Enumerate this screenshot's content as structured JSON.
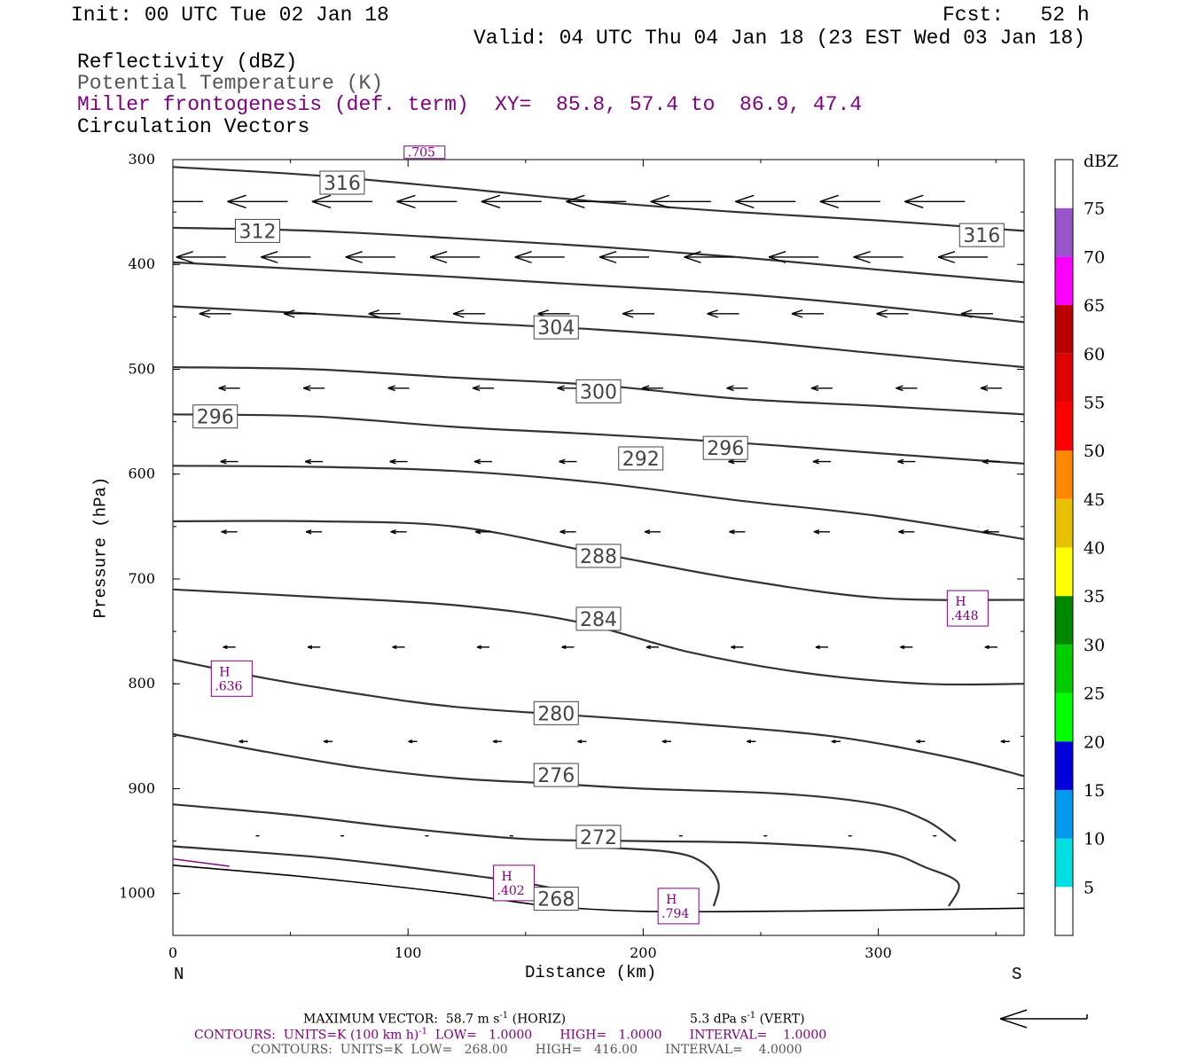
{
  "header": {
    "init": "Init: 00 UTC Tue 02 Jan 18",
    "fcst": "Fcst:   52 h",
    "valid": "Valid: 04 UTC Thu 04 Jan 18 (23 EST Wed 03 Jan 18)",
    "field1": "Reflectivity (dBZ)",
    "field2": "Potential Temperature (K)",
    "field3": "Miller frontogenesis (def. term)",
    "xy": "XY=  85.8, 57.4 to  86.9, 47.4",
    "field4": "Circulation Vectors"
  },
  "footer": {
    "max_vector_label": "MAXIMUM VECTOR:  58.7 m s",
    "max_vector_exp": "-1",
    "max_vector_horiz": " (HORIZ)",
    "vert_value": "5.3 dPa s",
    "vert_exp": "-1",
    "vert_suffix": " (VERT)",
    "contours1_a": "CONTOURS:  UNITS=K (100 km h)",
    "contours1_exp": "-1",
    "contours1_b": "  LOW=   1.0000       HIGH=   1.0000       INTERVAL=    1.0000",
    "contours2": "CONTOURS:  UNITS=K  LOW=   268.00       HIGH=   416.00       INTERVAL=    4.0000"
  },
  "colorbar": {
    "title": "dBZ",
    "labels": [
      "5",
      "10",
      "15",
      "20",
      "25",
      "30",
      "35",
      "40",
      "45",
      "50",
      "55",
      "60",
      "65",
      "70",
      "75"
    ],
    "colors": [
      "#ffffff",
      "#00e0e0",
      "#0099ee",
      "#0000dd",
      "#00ff00",
      "#00cc00",
      "#008800",
      "#ffff00",
      "#e8c000",
      "#ff8800",
      "#ff0000",
      "#dd0000",
      "#bb0000",
      "#ff00ff",
      "#9955cc",
      "#ffffff"
    ]
  },
  "chart_data": {
    "type": "line",
    "xlabel": "Distance (km)",
    "ylabel": "Pressure (hPa)",
    "x_ticks": [
      "0",
      "100",
      "200",
      "300"
    ],
    "y_ticks": [
      "300",
      "400",
      "500",
      "600",
      "700",
      "800",
      "900",
      "1000"
    ],
    "x_end_labels": {
      "left": "N",
      "right": "S"
    },
    "xlim": [
      0,
      362
    ],
    "ylim": [
      300,
      1040
    ],
    "isentropes": [
      {
        "theta": 268,
        "label": "268",
        "label_at": [
          163,
          1005
        ],
        "points": [
          [
            0,
            973
          ],
          [
            60,
            985
          ],
          [
            120,
            1000
          ],
          [
            160,
            1012
          ],
          [
            200,
            1017
          ],
          [
            250,
            1017
          ],
          [
            300,
            1016
          ],
          [
            362,
            1014
          ]
        ]
      },
      {
        "theta": 272,
        "label": "272",
        "label_at": [
          181,
          946
        ],
        "points": [
          [
            0,
            955
          ],
          [
            60,
            965
          ],
          [
            100,
            975
          ],
          [
            150,
            990
          ],
          [
            170,
            1000
          ]
        ]
      },
      {
        "theta": 272,
        "label": "",
        "label_at": null,
        "points": [
          [
            172,
            955
          ],
          [
            210,
            960
          ],
          [
            225,
            970
          ],
          [
            232,
            990
          ],
          [
            230,
            1012
          ]
        ]
      },
      {
        "theta": 276,
        "label": "276",
        "label_at": [
          163,
          887
        ],
        "points": [
          [
            0,
            915
          ],
          [
            50,
            925
          ],
          [
            100,
            938
          ],
          [
            150,
            948
          ],
          [
            200,
            950
          ],
          [
            250,
            952
          ],
          [
            300,
            960
          ],
          [
            320,
            975
          ],
          [
            334,
            990
          ],
          [
            330,
            1012
          ]
        ]
      },
      {
        "theta": 280,
        "label": "280",
        "label_at": [
          163,
          828
        ],
        "points": [
          [
            0,
            848
          ],
          [
            40,
            865
          ],
          [
            80,
            880
          ],
          [
            120,
            890
          ],
          [
            160,
            895
          ],
          [
            200,
            900
          ],
          [
            260,
            905
          ],
          [
            300,
            915
          ],
          [
            320,
            930
          ],
          [
            333,
            950
          ]
        ]
      },
      {
        "theta": 284,
        "label": "284",
        "label_at": [
          181,
          738
        ],
        "points": [
          [
            0,
            777
          ],
          [
            40,
            795
          ],
          [
            80,
            810
          ],
          [
            120,
            822
          ],
          [
            170,
            830
          ],
          [
            220,
            838
          ],
          [
            280,
            850
          ],
          [
            330,
            870
          ],
          [
            362,
            888
          ]
        ]
      },
      {
        "theta": 288,
        "label": "288",
        "label_at": [
          181,
          678
        ],
        "points": [
          [
            0,
            710
          ],
          [
            60,
            717
          ],
          [
            120,
            725
          ],
          [
            170,
            740
          ],
          [
            220,
            770
          ],
          [
            270,
            790
          ],
          [
            320,
            800
          ],
          [
            362,
            800
          ]
        ]
      },
      {
        "theta": 292,
        "label": "292",
        "label_at": [
          199,
          585
        ],
        "points": [
          [
            0,
            645
          ],
          [
            60,
            645
          ],
          [
            120,
            650
          ],
          [
            180,
            675
          ],
          [
            240,
            700
          ],
          [
            300,
            718
          ],
          [
            362,
            720
          ]
        ]
      },
      {
        "theta": 296,
        "label": "296",
        "label_at": [
          18,
          545
        ],
        "points": [
          [
            0,
            592
          ],
          [
            60,
            593
          ],
          [
            120,
            597
          ],
          [
            180,
            608
          ],
          [
            240,
            625
          ],
          [
            300,
            640
          ],
          [
            362,
            662
          ]
        ]
      },
      {
        "theta": 296,
        "label": "296",
        "label_at": [
          235,
          575
        ],
        "points": [
          [
            0,
            543
          ],
          [
            60,
            545
          ],
          [
            120,
            555
          ],
          [
            180,
            562
          ],
          [
            240,
            570
          ],
          [
            300,
            580
          ],
          [
            362,
            590
          ]
        ]
      },
      {
        "theta": 300,
        "label": "300",
        "label_at": [
          181,
          521
        ],
        "points": [
          [
            0,
            498
          ],
          [
            60,
            500
          ],
          [
            120,
            508
          ],
          [
            180,
            515
          ],
          [
            240,
            528
          ],
          [
            300,
            535
          ],
          [
            362,
            543
          ]
        ]
      },
      {
        "theta": 304,
        "label": "304",
        "label_at": [
          163,
          460
        ],
        "points": [
          [
            0,
            440
          ],
          [
            60,
            447
          ],
          [
            120,
            455
          ],
          [
            180,
            462
          ],
          [
            240,
            472
          ],
          [
            300,
            485
          ],
          [
            362,
            498
          ]
        ]
      },
      {
        "theta": 308,
        "label": "",
        "label_at": null,
        "points": [
          [
            0,
            398
          ],
          [
            60,
            405
          ],
          [
            120,
            412
          ],
          [
            180,
            420
          ],
          [
            240,
            428
          ],
          [
            300,
            440
          ],
          [
            362,
            455
          ]
        ]
      },
      {
        "theta": 312,
        "label": "312",
        "label_at": [
          36,
          368
        ],
        "points": [
          [
            0,
            365
          ],
          [
            60,
            368
          ],
          [
            120,
            375
          ],
          [
            180,
            383
          ],
          [
            240,
            393
          ],
          [
            300,
            405
          ],
          [
            362,
            417
          ]
        ]
      },
      {
        "theta": 316,
        "label": "316",
        "label_at": [
          72,
          322
        ],
        "points": [
          [
            0,
            307
          ],
          [
            60,
            315
          ],
          [
            120,
            327
          ],
          [
            180,
            340
          ],
          [
            240,
            350
          ],
          [
            300,
            358
          ],
          [
            362,
            368
          ]
        ]
      },
      {
        "theta": 316,
        "label": "316",
        "label_at": [
          344,
          372
        ],
        "points": []
      }
    ],
    "frontogenesis_maxima": [
      {
        "label": "H",
        "value": ".636",
        "x": 25,
        "y": 795
      },
      {
        "label": "H",
        "value": ".402",
        "x": 145,
        "y": 990
      },
      {
        "label": "H",
        "value": ".794",
        "x": 215,
        "y": 1012
      },
      {
        "label": "H",
        "value": ".448",
        "x": 338,
        "y": 728
      },
      {
        "label": "",
        "value": ".705",
        "x": 107,
        "y": 304
      }
    ],
    "frontogenesis_segment": [
      [
        0,
        967
      ],
      [
        24,
        974
      ]
    ],
    "vector_rows": [
      {
        "p": 340,
        "xs": [
          0,
          36,
          72,
          108,
          144,
          180,
          216,
          252,
          288,
          324
        ],
        "len": 34
      },
      {
        "p": 393,
        "xs": [
          12,
          48,
          84,
          120,
          156,
          192,
          228,
          264,
          300,
          336
        ],
        "len": 28
      },
      {
        "p": 447,
        "xs": [
          18,
          54,
          90,
          126,
          162,
          198,
          234,
          270,
          306,
          342
        ],
        "len": 18
      },
      {
        "p": 518,
        "xs": [
          24,
          60,
          96,
          132,
          168,
          204,
          240,
          276,
          312,
          348
        ],
        "len": 12
      },
      {
        "p": 588,
        "xs": [
          24,
          60,
          96,
          132,
          168,
          204,
          240,
          276,
          312,
          348
        ],
        "len": 10
      },
      {
        "p": 655,
        "xs": [
          24,
          60,
          96,
          132,
          168,
          204,
          240,
          276,
          312,
          348
        ],
        "len": 9
      },
      {
        "p": 765,
        "xs": [
          24,
          60,
          96,
          132,
          168,
          204,
          240,
          276,
          312,
          348
        ],
        "len": 7
      },
      {
        "p": 855,
        "xs": [
          30,
          66,
          102,
          138,
          174,
          210,
          246,
          282,
          318,
          354
        ],
        "len": 5
      },
      {
        "p": 945,
        "xs": [
          36,
          72,
          108,
          144,
          180,
          216,
          252,
          288,
          324
        ],
        "len": 2
      }
    ]
  }
}
